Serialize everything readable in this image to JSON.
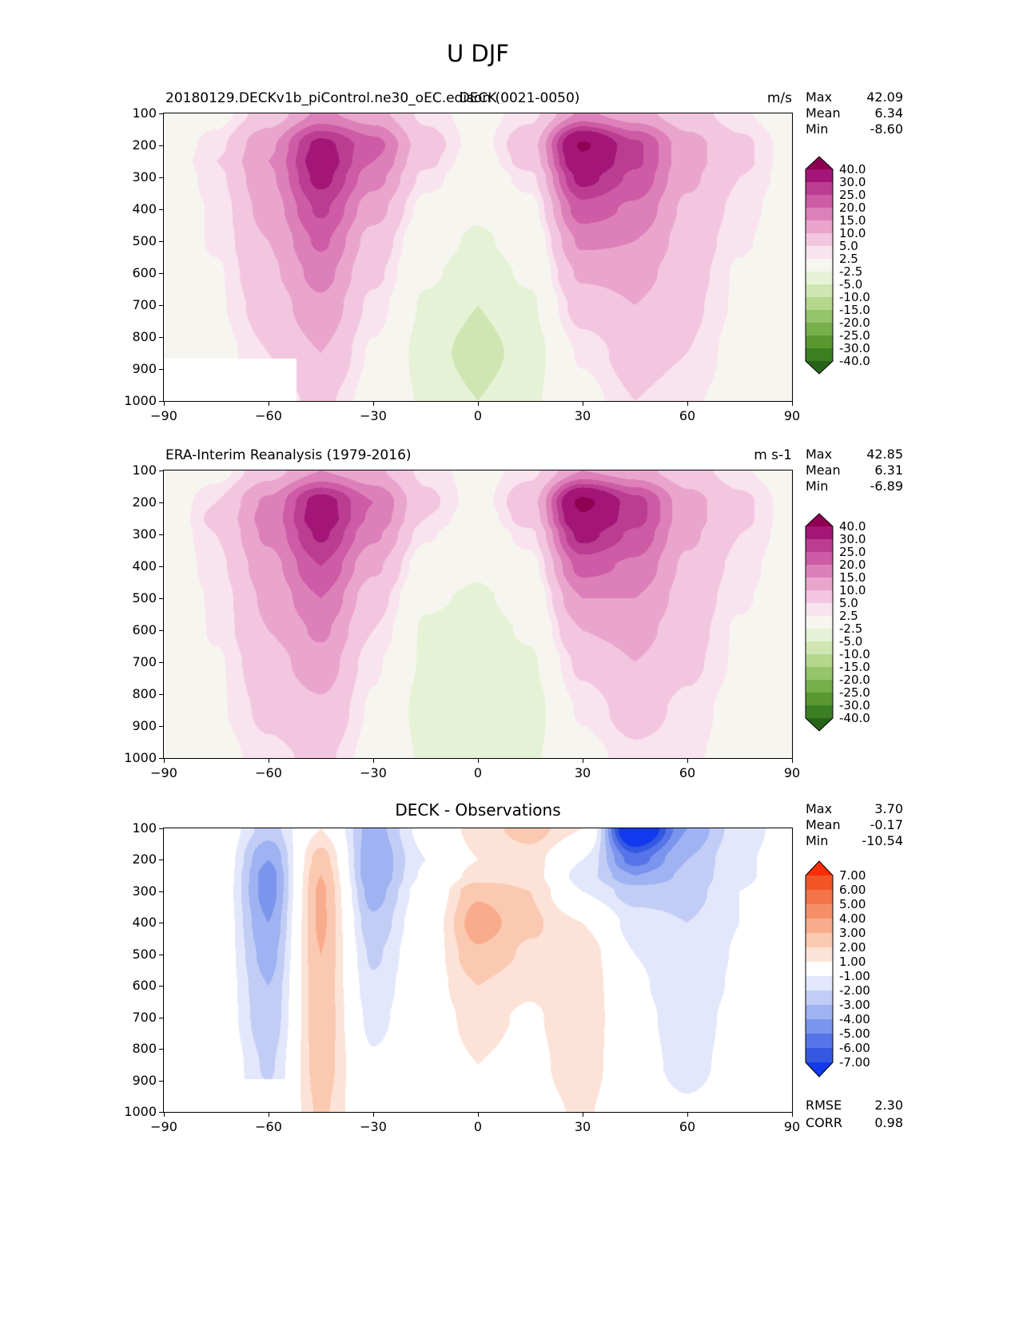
{
  "page": {
    "title": "U DJF"
  },
  "panels": [
    {
      "title_left": "20180129.DECKv1b_piControl.ne30_oEC.edison (0021-0050)",
      "title_center": "DECK",
      "units": "m/s",
      "stats": [
        {
          "label": "Max",
          "value": "42.09"
        },
        {
          "label": "Mean",
          "value": "6.34"
        },
        {
          "label": "Min",
          "value": "-8.60"
        }
      ]
    },
    {
      "title_left": "ERA-Interim Reanalysis (1979-2016)",
      "title_center": "",
      "units": "m s-1",
      "stats": [
        {
          "label": "Max",
          "value": "42.85"
        },
        {
          "label": "Mean",
          "value": "6.31"
        },
        {
          "label": "Min",
          "value": "-6.89"
        }
      ]
    },
    {
      "title_center": "DECK - Observations",
      "stats": [
        {
          "label": "Max",
          "value": "3.70"
        },
        {
          "label": "Mean",
          "value": "-0.17"
        },
        {
          "label": "Min",
          "value": "-10.54"
        }
      ],
      "extra_stats": [
        {
          "label": "RMSE",
          "value": "2.30"
        },
        {
          "label": "CORR",
          "value": "0.98"
        }
      ]
    }
  ],
  "chart_data": [
    {
      "type": "heatmap",
      "title": "20180129.DECKv1b_piControl.ne30_oEC.edison (0021-0050)",
      "title_center": "DECK",
      "units": "m/s",
      "xlim": [
        -90,
        90
      ],
      "ylim": [
        100,
        1000
      ],
      "x_ticks": [
        "−90",
        "−60",
        "−30",
        "0",
        "30",
        "60",
        "90"
      ],
      "y_ticks": [
        "100",
        "200",
        "300",
        "400",
        "500",
        "600",
        "700",
        "800",
        "900",
        "1000"
      ],
      "x": [
        -90,
        -75,
        -60,
        -45,
        -30,
        -15,
        0,
        15,
        30,
        45,
        60,
        75,
        90
      ],
      "y": [
        100,
        200,
        250,
        300,
        400,
        500,
        600,
        700,
        850,
        1000
      ],
      "values": [
        [
          -2,
          1,
          7,
          16,
          12,
          4,
          1,
          4,
          16,
          12,
          7,
          3,
          0
        ],
        [
          -1,
          4,
          14,
          32,
          22,
          7,
          1,
          8,
          41,
          26,
          12,
          6,
          1
        ],
        [
          -1,
          5,
          15,
          34,
          20,
          6,
          0,
          7,
          38,
          26,
          12,
          6,
          1
        ],
        [
          -1,
          4,
          14,
          32,
          17,
          4,
          -1,
          4,
          32,
          24,
          11,
          5,
          1
        ],
        [
          -1,
          3,
          12,
          26,
          12,
          1,
          -2,
          1,
          23,
          19,
          9,
          4,
          0
        ],
        [
          -1,
          3,
          10,
          21,
          8,
          -1,
          -3,
          -1,
          16,
          15,
          8,
          3,
          0
        ],
        [
          -2,
          2,
          9,
          17,
          6,
          -2,
          -4,
          -2,
          11,
          12,
          7,
          2,
          0
        ],
        [
          -2,
          2,
          7,
          14,
          4,
          -3,
          -5,
          -3,
          7,
          10,
          6,
          2,
          0
        ],
        [
          -2,
          1,
          5,
          10,
          2,
          -4,
          -6,
          -4,
          3,
          7,
          5,
          1,
          0
        ],
        [
          -1,
          0,
          3,
          6,
          1,
          -3,
          -5,
          -3,
          1,
          5,
          3,
          1,
          0
        ]
      ],
      "levels": [
        -40,
        -30,
        -25,
        -20,
        -15,
        -10,
        -5,
        -2.5,
        2.5,
        5,
        10,
        15,
        20,
        25,
        30,
        40
      ],
      "colors": [
        "#276419",
        "#3c7f22",
        "#58982f",
        "#76b04a",
        "#94c56a",
        "#b3d88c",
        "#cfe6b2",
        "#e6f2d5",
        "#f6f5ef",
        "#f9e3ef",
        "#f3c6e0",
        "#eaa5cd",
        "#dd80b9",
        "#cd5ba5",
        "#bb3d92",
        "#a31577",
        "#8e0152"
      ],
      "colorbar_labels": [
        "40.0",
        "30.0",
        "25.0",
        "20.0",
        "15.0",
        "10.0",
        "5.0",
        "2.5",
        "-2.5",
        "-5.0",
        "-10.0",
        "-15.0",
        "-20.0",
        "-25.0",
        "-30.0",
        "-40.0"
      ],
      "stats": {
        "max": 42.09,
        "mean": 6.34,
        "min": -8.6
      },
      "mask": {
        "lat_max": -52,
        "p_min": 868
      }
    },
    {
      "type": "heatmap",
      "title": "ERA-Interim Reanalysis (1979-2016)",
      "units": "m s-1",
      "xlim": [
        -90,
        90
      ],
      "ylim": [
        100,
        1000
      ],
      "x_ticks": [
        "−90",
        "−60",
        "−30",
        "0",
        "30",
        "60",
        "90"
      ],
      "y_ticks": [
        "100",
        "200",
        "300",
        "400",
        "500",
        "600",
        "700",
        "800",
        "900",
        "1000"
      ],
      "x": [
        -90,
        -75,
        -60,
        -45,
        -30,
        -15,
        0,
        15,
        30,
        45,
        60,
        75,
        90
      ],
      "y": [
        100,
        200,
        250,
        300,
        400,
        500,
        600,
        700,
        850,
        1000
      ],
      "values": [
        [
          -2,
          1,
          8,
          15,
          11,
          4,
          1,
          4,
          15,
          12,
          7,
          3,
          0
        ],
        [
          -1,
          5,
          16,
          33,
          20,
          6,
          1,
          8,
          42,
          27,
          12,
          6,
          1
        ],
        [
          -1,
          6,
          17,
          34,
          19,
          5,
          0,
          7,
          39,
          27,
          12,
          6,
          1
        ],
        [
          -1,
          5,
          16,
          31,
          16,
          3,
          -1,
          4,
          32,
          24,
          11,
          5,
          1
        ],
        [
          -1,
          4,
          13,
          25,
          11,
          0,
          -2,
          1,
          22,
          19,
          9,
          4,
          0
        ],
        [
          -1,
          3,
          11,
          20,
          7,
          -2,
          -3,
          -1,
          15,
          15,
          8,
          3,
          0
        ],
        [
          -2,
          3,
          10,
          16,
          5,
          -3,
          -4,
          -2,
          10,
          12,
          7,
          2,
          0
        ],
        [
          -2,
          2,
          8,
          13,
          3,
          -3,
          -5,
          -3,
          6,
          10,
          6,
          2,
          0
        ],
        [
          -2,
          2,
          6,
          9,
          2,
          -4,
          -5,
          -4,
          3,
          7,
          4,
          1,
          0
        ],
        [
          -1,
          1,
          4,
          6,
          1,
          -3,
          -4,
          -3,
          1,
          4,
          3,
          1,
          0
        ]
      ],
      "levels": [
        -40,
        -30,
        -25,
        -20,
        -15,
        -10,
        -5,
        -2.5,
        2.5,
        5,
        10,
        15,
        20,
        25,
        30,
        40
      ],
      "colors": [
        "#276419",
        "#3c7f22",
        "#58982f",
        "#76b04a",
        "#94c56a",
        "#b3d88c",
        "#cfe6b2",
        "#e6f2d5",
        "#f6f5ef",
        "#f9e3ef",
        "#f3c6e0",
        "#eaa5cd",
        "#dd80b9",
        "#cd5ba5",
        "#bb3d92",
        "#a31577",
        "#8e0152"
      ],
      "colorbar_labels": [
        "40.0",
        "30.0",
        "25.0",
        "20.0",
        "15.0",
        "10.0",
        "5.0",
        "2.5",
        "-2.5",
        "-5.0",
        "-10.0",
        "-15.0",
        "-20.0",
        "-25.0",
        "-30.0",
        "-40.0"
      ],
      "stats": {
        "max": 42.85,
        "mean": 6.31,
        "min": -6.89
      }
    },
    {
      "type": "heatmap",
      "title": "DECK - Observations",
      "units": "",
      "xlim": [
        -90,
        90
      ],
      "ylim": [
        100,
        1000
      ],
      "x_ticks": [
        "−90",
        "−60",
        "−30",
        "0",
        "30",
        "60",
        "90"
      ],
      "y_ticks": [
        "100",
        "200",
        "300",
        "400",
        "500",
        "600",
        "700",
        "800",
        "900",
        "1000"
      ],
      "x": [
        -90,
        -75,
        -60,
        -45,
        -30,
        -15,
        0,
        15,
        30,
        45,
        60,
        75,
        90
      ],
      "y": [
        100,
        200,
        250,
        300,
        400,
        500,
        600,
        700,
        850,
        1000
      ],
      "values": [
        [
          0,
          0.3,
          -2.5,
          1,
          -3.5,
          -0.5,
          1.5,
          2.5,
          1,
          -9.5,
          -4,
          -1.5,
          -0.5
        ],
        [
          0,
          0.3,
          -4,
          2.5,
          -4,
          -1,
          1,
          1.5,
          -1,
          -5.5,
          -3,
          -1.2,
          -0.4
        ],
        [
          0,
          0.3,
          -4.5,
          3,
          -4,
          -0.8,
          1.5,
          1.5,
          -1.5,
          -4,
          -2.8,
          -1.2,
          -0.4
        ],
        [
          0,
          0.2,
          -4.5,
          3.2,
          -3.5,
          -0.3,
          2.8,
          2,
          -1,
          -2.5,
          -2.5,
          -1,
          -0.3
        ],
        [
          0,
          0.2,
          -4,
          3.2,
          -2.8,
          0,
          3.6,
          2.2,
          1,
          -1.5,
          -2,
          -1,
          -0.3
        ],
        [
          0,
          0.1,
          -3.5,
          3,
          -2.2,
          0.2,
          2.8,
          1.8,
          1.8,
          -1,
          -1.8,
          -0.9,
          -0.2
        ],
        [
          0,
          0.1,
          -3,
          2.8,
          -1.8,
          0.3,
          2,
          1.2,
          2,
          -0.8,
          -1.8,
          -0.8,
          -0.2
        ],
        [
          0.2,
          0.1,
          -2.8,
          2.8,
          -1.4,
          0.3,
          1.4,
          0.8,
          2,
          -0.6,
          -1.6,
          -0.6,
          -0.2
        ],
        [
          0.3,
          0.4,
          -2.2,
          2.6,
          -0.8,
          0.3,
          1,
          0.6,
          1.8,
          -0.5,
          -1.4,
          -0.5,
          -0.1
        ],
        [
          0.2,
          0.3,
          -1.5,
          2.2,
          -0.5,
          0.2,
          0.8,
          0.4,
          1.2,
          -0.3,
          -0.8,
          -0.3,
          0
        ]
      ],
      "levels": [
        -7,
        -6,
        -5,
        -4,
        -3,
        -2,
        -1,
        1,
        2,
        3,
        4,
        5,
        6,
        7
      ],
      "colors": [
        "#1239ee",
        "#3558e3",
        "#5675e8",
        "#7b94ed",
        "#9fb2f2",
        "#c2cdf6",
        "#e2e7fb",
        "#ffffff",
        "#fde3d7",
        "#fbc9b2",
        "#f8ac8c",
        "#f68f68",
        "#f47347",
        "#f25626",
        "#fb2c07"
      ],
      "colorbar_labels": [
        "7.00",
        "6.00",
        "5.00",
        "4.00",
        "3.00",
        "2.00",
        "1.00",
        "-1.00",
        "-2.00",
        "-3.00",
        "-4.00",
        "-5.00",
        "-6.00",
        "-7.00"
      ],
      "stats": {
        "max": 3.7,
        "mean": -0.17,
        "min": -10.54,
        "rmse": 2.3,
        "corr": 0.98
      },
      "mask": {
        "lat_max": -54,
        "p_min": 895
      }
    }
  ]
}
